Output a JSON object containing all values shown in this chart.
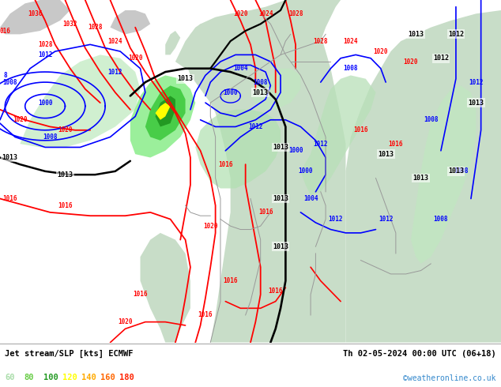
{
  "title_left": "Jet stream/SLP [kts] ECMWF",
  "title_right": "Th 02-05-2024 00:00 UTC (06+18)",
  "credit": "©weatheronline.co.uk",
  "legend_values": [
    "60",
    "80",
    "100",
    "120",
    "140",
    "160",
    "180"
  ],
  "legend_colors": [
    "#aaddaa",
    "#66cc44",
    "#229922",
    "#ffff00",
    "#ffaa00",
    "#ff6600",
    "#ff2200"
  ],
  "ocean_color": "#e8e8e8",
  "land_color": "#c8ddc8",
  "land_color2": "#b8ccb8",
  "figsize": [
    6.34,
    4.9
  ],
  "dpi": 100,
  "bottom_bar_height": 0.115,
  "red_label_fontsize": 5.5,
  "blue_label_fontsize": 5.5,
  "black_label_fontsize": 6.0
}
